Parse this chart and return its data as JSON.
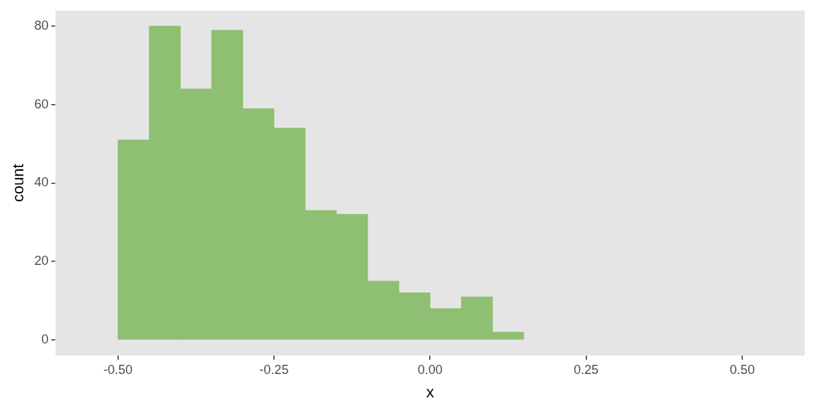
{
  "chart_data": {
    "type": "histogram",
    "xlabel": "x",
    "ylabel": "count",
    "bins": [
      -0.5,
      -0.45,
      -0.4,
      -0.35,
      -0.3,
      -0.25,
      -0.2,
      -0.15,
      -0.1,
      -0.05,
      0,
      0.05,
      0.1,
      0.15
    ],
    "values": [
      51,
      80,
      64,
      79,
      59,
      54,
      33,
      32,
      15,
      12,
      8,
      11,
      2
    ],
    "color": "#8fbf72",
    "xlim": [
      -0.6,
      0.6
    ],
    "xticks": [
      {
        "value": -0.5,
        "label": "-0.50"
      },
      {
        "value": -0.25,
        "label": "-0.25"
      },
      {
        "value": 0,
        "label": "0.00"
      },
      {
        "value": 0.25,
        "label": "0.25"
      },
      {
        "value": 0.5,
        "label": "0.50"
      }
    ],
    "ylim": [
      -4,
      84
    ],
    "yticks": [
      0,
      20,
      40,
      60,
      80
    ],
    "grid": false,
    "legend": false
  }
}
